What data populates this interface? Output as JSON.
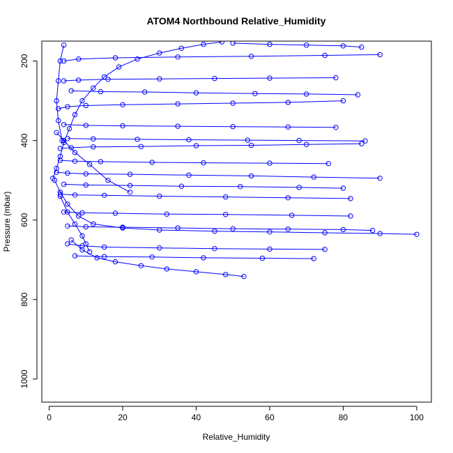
{
  "chart_data": {
    "type": "scatter",
    "title": "ATOM4 Northbound Relative_Humidity",
    "xlabel": "Relative_Humidity",
    "ylabel": "Pressure (mbar)",
    "xlim": [
      -2,
      104
    ],
    "ylim": [
      1058,
      150
    ],
    "y_reversed": true,
    "xticks": [
      0,
      20,
      40,
      60,
      80,
      100
    ],
    "yticks": [
      200,
      400,
      600,
      800,
      1000
    ],
    "grid": false,
    "legend": "none",
    "marker": "open-circle",
    "connected": true,
    "series_color": "#0000ff",
    "series": [
      {
        "x": [
          1.0,
          2.0,
          3.0,
          4.0,
          5.5,
          7.0,
          9.0,
          12.0,
          15.0,
          19.0,
          24.0,
          30.0,
          36.0,
          42.0,
          47.0
        ],
        "y": [
          495,
          470,
          440,
          405,
          370,
          335,
          300,
          268,
          240,
          215,
          195,
          180,
          168,
          158,
          152
        ]
      },
      {
        "x": [
          1.5,
          3.0,
          5.0,
          8.0,
          12.0,
          20.0,
          30.0,
          45.0,
          60.0,
          75.0,
          90.0,
          100.0
        ],
        "y": [
          500,
          530,
          560,
          590,
          610,
          620,
          625,
          628,
          630,
          632,
          634,
          636
        ]
      },
      {
        "x": [
          2.5,
          5.0,
          10.0,
          20.0,
          35.0,
          50.0,
          65.0,
          80.0
        ],
        "y": [
          320,
          315,
          312,
          310,
          308,
          306,
          304,
          300
        ]
      },
      {
        "x": [
          3.0,
          6.0,
          12.0,
          25.0,
          40.0,
          55.0,
          70.0,
          85.0
        ],
        "y": [
          420,
          418,
          416,
          415,
          413,
          412,
          410,
          408
        ]
      },
      {
        "x": [
          2.0,
          5.0,
          10.0,
          22.0,
          38.0,
          55.0,
          72.0,
          90.0
        ],
        "y": [
          480,
          482,
          484,
          485,
          487,
          489,
          492,
          495
        ]
      },
      {
        "x": [
          3.0,
          7.0,
          15.0,
          30.0,
          48.0,
          65.0,
          82.0
        ],
        "y": [
          535,
          537,
          538,
          540,
          542,
          544,
          546
        ]
      },
      {
        "x": [
          5.0,
          9.0,
          15.0,
          30.0,
          45.0,
          60.0,
          75.0
        ],
        "y": [
          660,
          665,
          668,
          670,
          672,
          673,
          674
        ]
      },
      {
        "x": [
          6.0,
          9.0,
          13.0,
          18.0,
          25.0,
          32.0,
          40.0,
          48.0,
          53.0
        ],
        "y": [
          650,
          675,
          695,
          705,
          715,
          723,
          730,
          737,
          742
        ]
      },
      {
        "x": [
          4.0,
          8.0,
          16.0,
          30.0,
          45.0,
          60.0,
          78.0
        ],
        "y": [
          250,
          248,
          246,
          245,
          244,
          243,
          242
        ]
      },
      {
        "x": [
          4.0,
          8.0,
          18.0,
          35.0,
          55.0,
          75.0,
          90.0
        ],
        "y": [
          200,
          195,
          192,
          190,
          188,
          186,
          184
        ]
      },
      {
        "x": [
          4.0,
          10.0,
          20.0,
          35.0,
          50.0,
          65.0,
          78.0
        ],
        "y": [
          360,
          362,
          363,
          364,
          365,
          366,
          367
        ]
      },
      {
        "x": [
          3.0,
          7.0,
          14.0,
          28.0,
          42.0,
          60.0,
          76.0
        ],
        "y": [
          450,
          452,
          453,
          455,
          456,
          457,
          458
        ]
      },
      {
        "x": [
          4.0,
          9.0,
          18.0,
          32.0,
          48.0,
          66.0,
          82.0
        ],
        "y": [
          580,
          582,
          583,
          585,
          586,
          588,
          590
        ]
      },
      {
        "x": [
          5.0,
          10.0,
          20.0,
          35.0,
          50.0,
          65.0,
          80.0,
          88.0
        ],
        "y": [
          615,
          617,
          618,
          620,
          622,
          623,
          624,
          626
        ]
      },
      {
        "x": [
          2.0,
          4.0,
          7.0,
          11.0,
          16.0,
          22.0
        ],
        "y": [
          380,
          400,
          430,
          460,
          500,
          530
        ]
      },
      {
        "x": [
          3.0,
          5.0,
          7.0,
          9.0,
          10.0,
          11.0
        ],
        "y": [
          540,
          580,
          610,
          640,
          660,
          680
        ]
      },
      {
        "x": [
          4.0,
          3.0,
          2.5,
          2.0,
          2.5,
          3.5
        ],
        "y": [
          160,
          200,
          250,
          300,
          350,
          400
        ]
      },
      {
        "x": [
          50.0,
          60.0,
          70.0,
          80.0,
          85.0
        ],
        "y": [
          155,
          158,
          160,
          162,
          165
        ]
      },
      {
        "x": [
          6.0,
          14.0,
          26.0,
          40.0,
          56.0,
          70.0,
          84.0
        ],
        "y": [
          275,
          277,
          278,
          280,
          282,
          283,
          285
        ]
      },
      {
        "x": [
          5.0,
          12.0,
          24.0,
          38.0,
          54.0,
          68.0,
          86.0
        ],
        "y": [
          395,
          396,
          397,
          398,
          399,
          400,
          401
        ]
      },
      {
        "x": [
          4.0,
          10.0,
          22.0,
          36.0,
          52.0,
          68.0,
          80.0
        ],
        "y": [
          510,
          512,
          513,
          515,
          516,
          518,
          520
        ]
      },
      {
        "x": [
          7.0,
          15.0,
          28.0,
          42.0,
          58.0,
          72.0
        ],
        "y": [
          690,
          692,
          693,
          695,
          696,
          697
        ]
      }
    ]
  }
}
